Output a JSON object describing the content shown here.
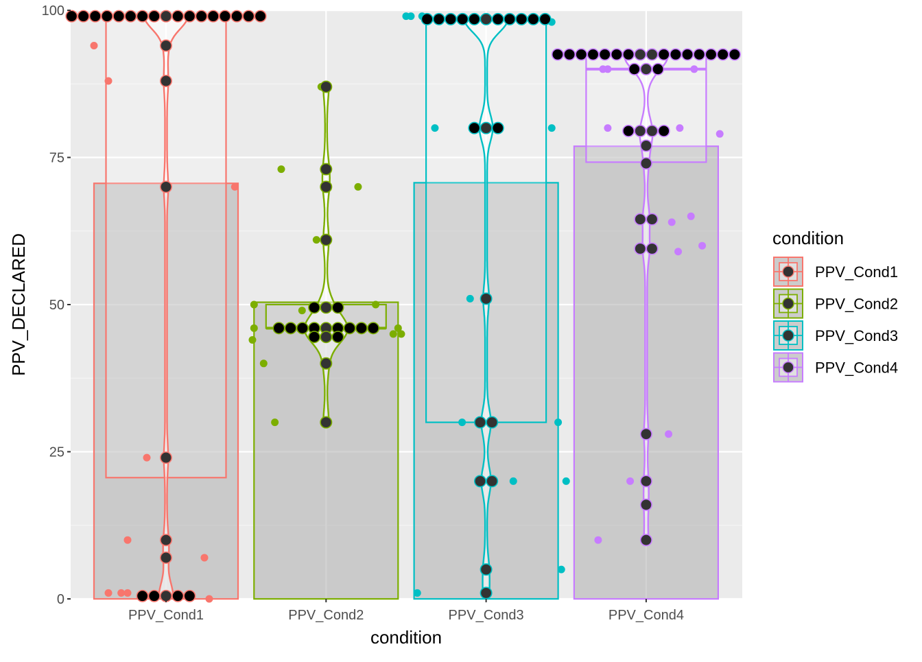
{
  "chart_data": {
    "type": "bar",
    "overlays": [
      "boxplot",
      "violin",
      "jitter",
      "dotplot"
    ],
    "title": "",
    "xlabel": "condition",
    "ylabel": "PPV_DECLARED",
    "ylim": [
      0,
      100
    ],
    "yticks": [
      "0",
      "25",
      "50",
      "75",
      "100"
    ],
    "grid": true,
    "legend": {
      "title": "condition",
      "placement": "right",
      "entries": [
        "PPV_Cond1",
        "PPV_Cond2",
        "PPV_Cond3",
        "PPV_Cond4"
      ]
    },
    "categories": [
      "PPV_Cond1",
      "PPV_Cond2",
      "PPV_Cond3",
      "PPV_Cond4"
    ],
    "colors": [
      "#F8766D",
      "#7CAE00",
      "#00BFC4",
      "#C77CFF"
    ],
    "bar_values": [
      70.6,
      50.4,
      70.7,
      76.9
    ],
    "boxplot": [
      {
        "q1": 20.6,
        "median": 99,
        "q3": 99
      },
      {
        "q1": 46,
        "median": 46,
        "q3": 50
      },
      {
        "q1": 30,
        "median": 98.5,
        "q3": 98.5
      },
      {
        "q1": 74.2,
        "median": 90,
        "q3": 92.5
      }
    ],
    "dotplot": [
      [
        [
          99,
          17
        ],
        [
          94,
          1
        ],
        [
          88,
          1
        ],
        [
          70,
          1
        ],
        [
          24,
          1
        ],
        [
          10,
          1
        ],
        [
          7,
          1
        ],
        [
          0.5,
          5
        ]
      ],
      [
        [
          87,
          1
        ],
        [
          73,
          1
        ],
        [
          70,
          1
        ],
        [
          61,
          1
        ],
        [
          49.5,
          3
        ],
        [
          46,
          9
        ],
        [
          44.5,
          3
        ],
        [
          40,
          1
        ],
        [
          30,
          1
        ]
      ],
      [
        [
          98.5,
          11
        ],
        [
          80,
          3
        ],
        [
          51,
          1
        ],
        [
          30,
          2
        ],
        [
          20,
          2
        ],
        [
          5,
          1
        ],
        [
          1,
          1
        ]
      ],
      [
        [
          92.5,
          16
        ],
        [
          90,
          3
        ],
        [
          79.5,
          4
        ],
        [
          77,
          1
        ],
        [
          74,
          1
        ],
        [
          64.5,
          2
        ],
        [
          59.5,
          2
        ],
        [
          28,
          1
        ],
        [
          20,
          1
        ],
        [
          16,
          1
        ],
        [
          10,
          1
        ]
      ]
    ],
    "jitter": [
      [
        [
          -0.45,
          94
        ],
        [
          -0.36,
          88
        ],
        [
          0.43,
          70
        ],
        [
          -0.12,
          24
        ],
        [
          -0.24,
          10
        ],
        [
          0.24,
          7
        ],
        [
          -0.36,
          1
        ],
        [
          -0.28,
          1
        ],
        [
          -0.24,
          1
        ],
        [
          0.27,
          0
        ]
      ],
      [
        [
          -0.45,
          50
        ],
        [
          -0.45,
          46
        ],
        [
          -0.46,
          44
        ],
        [
          -0.39,
          40
        ],
        [
          -0.32,
          30
        ],
        [
          -0.28,
          73
        ],
        [
          0.2,
          70
        ],
        [
          -0.06,
          61
        ],
        [
          -0.15,
          49
        ],
        [
          0.31,
          50
        ],
        [
          0.45,
          46
        ],
        [
          0.42,
          45
        ],
        [
          0.47,
          45
        ],
        [
          -0.03,
          87
        ]
      ],
      [
        [
          -0.5,
          99
        ],
        [
          -0.47,
          99
        ],
        [
          -0.4,
          99
        ],
        [
          0.41,
          98
        ],
        [
          -0.32,
          80
        ],
        [
          0.41,
          80
        ],
        [
          -0.1,
          51
        ],
        [
          -0.15,
          30
        ],
        [
          0.45,
          30
        ],
        [
          0.17,
          20
        ],
        [
          0.5,
          20
        ],
        [
          0.47,
          5
        ],
        [
          -0.43,
          1
        ]
      ],
      [
        [
          -0.27,
          90
        ],
        [
          -0.24,
          90
        ],
        [
          0.3,
          90
        ],
        [
          -0.24,
          80
        ],
        [
          0.21,
          80
        ],
        [
          0.46,
          79
        ],
        [
          0.16,
          64
        ],
        [
          0.28,
          65
        ],
        [
          0.2,
          59
        ],
        [
          0.35,
          60
        ],
        [
          0.14,
          28
        ],
        [
          -0.1,
          20
        ],
        [
          -0.3,
          10
        ]
      ]
    ]
  }
}
